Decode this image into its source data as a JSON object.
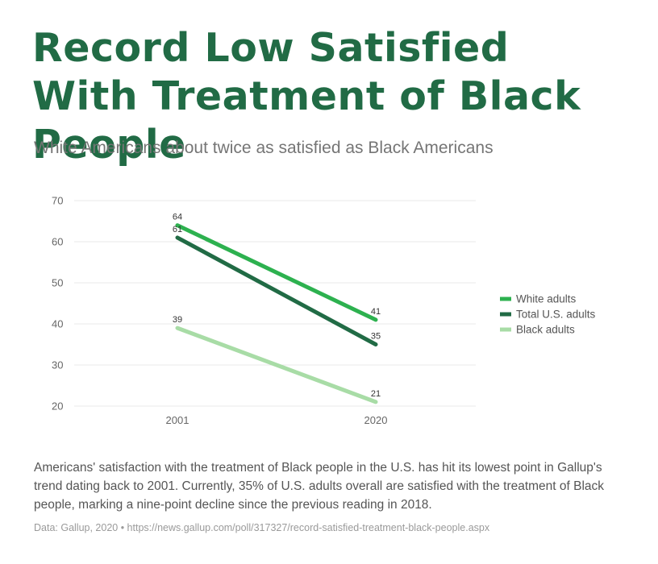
{
  "title": "Record Low Satisfied With Treatment of Black People",
  "subtitle": "White Americans about twice as satisfied as Black Americans",
  "chart_data": {
    "type": "line",
    "x": [
      "2001",
      "2020"
    ],
    "ylim": [
      20,
      70
    ],
    "yticks": [
      20,
      30,
      40,
      50,
      60,
      70
    ],
    "grid": true,
    "legend_position": "right",
    "series": [
      {
        "name": "White adults",
        "values": [
          64,
          41
        ],
        "color": "#2db14f"
      },
      {
        "name": "Total U.S. adults",
        "values": [
          61,
          35
        ],
        "color": "#216b45"
      },
      {
        "name": "Black adults",
        "values": [
          39,
          21
        ],
        "color": "#a8dca6"
      }
    ]
  },
  "description": "Americans' satisfaction with the treatment of Black people in the U.S. has hit its lowest point in Gallup's trend dating back to 2001. Currently, 35% of U.S. adults overall are satisfied with the treatment of Black people, marking a nine-point decline since the previous reading in 2018.",
  "source": "Data: Gallup, 2020 • https://news.gallup.com/poll/317327/record-satisfied-treatment-black-people.aspx"
}
